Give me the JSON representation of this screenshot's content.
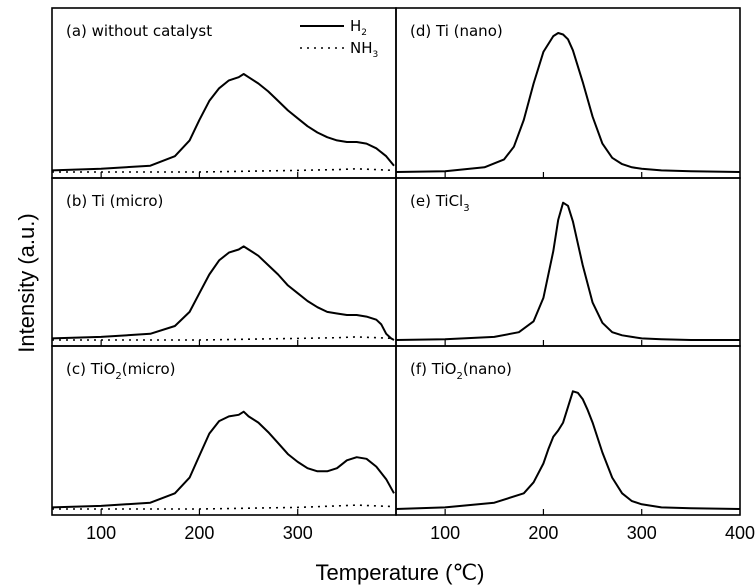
{
  "chart_data": {
    "type": "line",
    "xlabel": "Temperature (℃)",
    "ylabel": "Intensity (a.u.)",
    "legend": {
      "placement": "top-right of panel (a)",
      "entries": [
        {
          "label": "H",
          "sub": "2",
          "style": "solid"
        },
        {
          "label": "NH",
          "sub": "3",
          "style": "dotted"
        }
      ]
    },
    "panels": [
      {
        "label": "(a) without catalyst",
        "column": "left",
        "row": 0,
        "xlim": [
          50,
          400
        ],
        "xticks": [
          "100",
          "200",
          "300"
        ],
        "series": [
          {
            "name": "H₂",
            "x": [
              50,
              100,
              150,
              175,
              190,
              200,
              210,
              220,
              230,
              240,
              245,
              250,
              260,
              270,
              280,
              290,
              300,
              310,
              320,
              330,
              340,
              350,
              360,
              370,
              380,
              390,
              398
            ],
            "y": [
              0.01,
              0.02,
              0.04,
              0.1,
              0.2,
              0.33,
              0.45,
              0.53,
              0.58,
              0.6,
              0.62,
              0.6,
              0.56,
              0.51,
              0.45,
              0.39,
              0.34,
              0.29,
              0.25,
              0.22,
              0.2,
              0.19,
              0.19,
              0.18,
              0.15,
              0.1,
              0.04
            ]
          },
          {
            "name": "NH₃",
            "x": [
              50,
              200,
              250,
              300,
              340,
              360,
              380,
              398
            ],
            "y": [
              0.0,
              0.0,
              0.005,
              0.01,
              0.015,
              0.02,
              0.015,
              0.01
            ]
          }
        ]
      },
      {
        "label": "(b) Ti (micro)",
        "column": "left",
        "row": 1,
        "xlim": [
          50,
          400
        ],
        "xticks": [
          "100",
          "200",
          "300"
        ],
        "series": [
          {
            "name": "H₂",
            "x": [
              50,
              100,
              150,
              175,
              190,
              200,
              210,
              220,
              230,
              240,
              245,
              250,
              260,
              270,
              280,
              290,
              300,
              310,
              320,
              330,
              340,
              350,
              360,
              370,
              380,
              385,
              390,
              395,
              398
            ],
            "y": [
              0.01,
              0.02,
              0.04,
              0.09,
              0.18,
              0.3,
              0.42,
              0.51,
              0.56,
              0.58,
              0.6,
              0.58,
              0.54,
              0.48,
              0.42,
              0.35,
              0.3,
              0.25,
              0.21,
              0.18,
              0.17,
              0.16,
              0.16,
              0.15,
              0.13,
              0.1,
              0.04,
              0.01,
              0.0
            ]
          },
          {
            "name": "NH₃",
            "x": [
              50,
              200,
              250,
              300,
              340,
              360,
              380,
              398
            ],
            "y": [
              0.0,
              0.0,
              0.005,
              0.01,
              0.015,
              0.02,
              0.015,
              0.01
            ]
          }
        ]
      },
      {
        "label": "(c) TiO",
        "label_sub": "2",
        "label_rest": "(micro)",
        "column": "left",
        "row": 2,
        "xlim": [
          50,
          400
        ],
        "xticks": [
          "100",
          "200",
          "300"
        ],
        "series": [
          {
            "name": "H₂",
            "x": [
              50,
              100,
              150,
              175,
              190,
              200,
              210,
              220,
              230,
              240,
              245,
              250,
              260,
              270,
              280,
              290,
              300,
              310,
              320,
              330,
              340,
              350,
              360,
              370,
              380,
              390,
              398
            ],
            "y": [
              0.01,
              0.02,
              0.04,
              0.1,
              0.2,
              0.34,
              0.48,
              0.56,
              0.59,
              0.6,
              0.62,
              0.59,
              0.55,
              0.49,
              0.42,
              0.35,
              0.3,
              0.26,
              0.24,
              0.24,
              0.26,
              0.31,
              0.33,
              0.32,
              0.27,
              0.19,
              0.1
            ]
          },
          {
            "name": "NH₃",
            "x": [
              50,
              200,
              250,
              300,
              340,
              360,
              380,
              398
            ],
            "y": [
              0.0,
              0.0,
              0.005,
              0.01,
              0.02,
              0.025,
              0.02,
              0.015
            ]
          }
        ]
      },
      {
        "label": "(d) Ti (nano)",
        "column": "right",
        "row": 0,
        "xlim": [
          50,
          400
        ],
        "xticks": [],
        "series": [
          {
            "name": "H₂",
            "x": [
              50,
              100,
              140,
              160,
              170,
              180,
              190,
              200,
              210,
              215,
              220,
              225,
              230,
              240,
              250,
              260,
              270,
              280,
              290,
              300,
              320,
              350,
              400
            ],
            "y": [
              0.0,
              0.005,
              0.03,
              0.08,
              0.16,
              0.33,
              0.56,
              0.76,
              0.86,
              0.88,
              0.87,
              0.84,
              0.77,
              0.57,
              0.35,
              0.18,
              0.09,
              0.05,
              0.03,
              0.02,
              0.01,
              0.005,
              0.0
            ]
          }
        ]
      },
      {
        "label": "(e) TiCl",
        "label_sub": "3",
        "column": "right",
        "row": 1,
        "xlim": [
          50,
          400
        ],
        "xticks": [],
        "series": [
          {
            "name": "H₂",
            "x": [
              50,
              100,
              150,
              175,
              190,
              200,
              210,
              215,
              220,
              225,
              230,
              235,
              240,
              250,
              260,
              270,
              280,
              290,
              300,
              320,
              350,
              400
            ],
            "y": [
              0.0,
              0.005,
              0.02,
              0.05,
              0.12,
              0.27,
              0.57,
              0.77,
              0.88,
              0.86,
              0.76,
              0.62,
              0.48,
              0.24,
              0.11,
              0.05,
              0.03,
              0.02,
              0.01,
              0.005,
              0.0,
              0.0
            ]
          }
        ]
      },
      {
        "label": "(f) TiO",
        "label_sub": "2",
        "label_rest": "(nano)",
        "column": "right",
        "row": 2,
        "xlim": [
          50,
          400
        ],
        "xticks": [
          "100",
          "200",
          "300",
          "400"
        ],
        "series": [
          {
            "name": "H₂",
            "x": [
              50,
              100,
              150,
              180,
              190,
              200,
              205,
              210,
              215,
              220,
              225,
              230,
              235,
              240,
              245,
              250,
              260,
              270,
              280,
              290,
              300,
              320,
              350,
              400
            ],
            "y": [
              0.0,
              0.01,
              0.04,
              0.1,
              0.17,
              0.29,
              0.38,
              0.46,
              0.5,
              0.55,
              0.65,
              0.75,
              0.74,
              0.7,
              0.63,
              0.55,
              0.36,
              0.2,
              0.1,
              0.05,
              0.03,
              0.01,
              0.005,
              0.0
            ]
          }
        ]
      }
    ]
  }
}
